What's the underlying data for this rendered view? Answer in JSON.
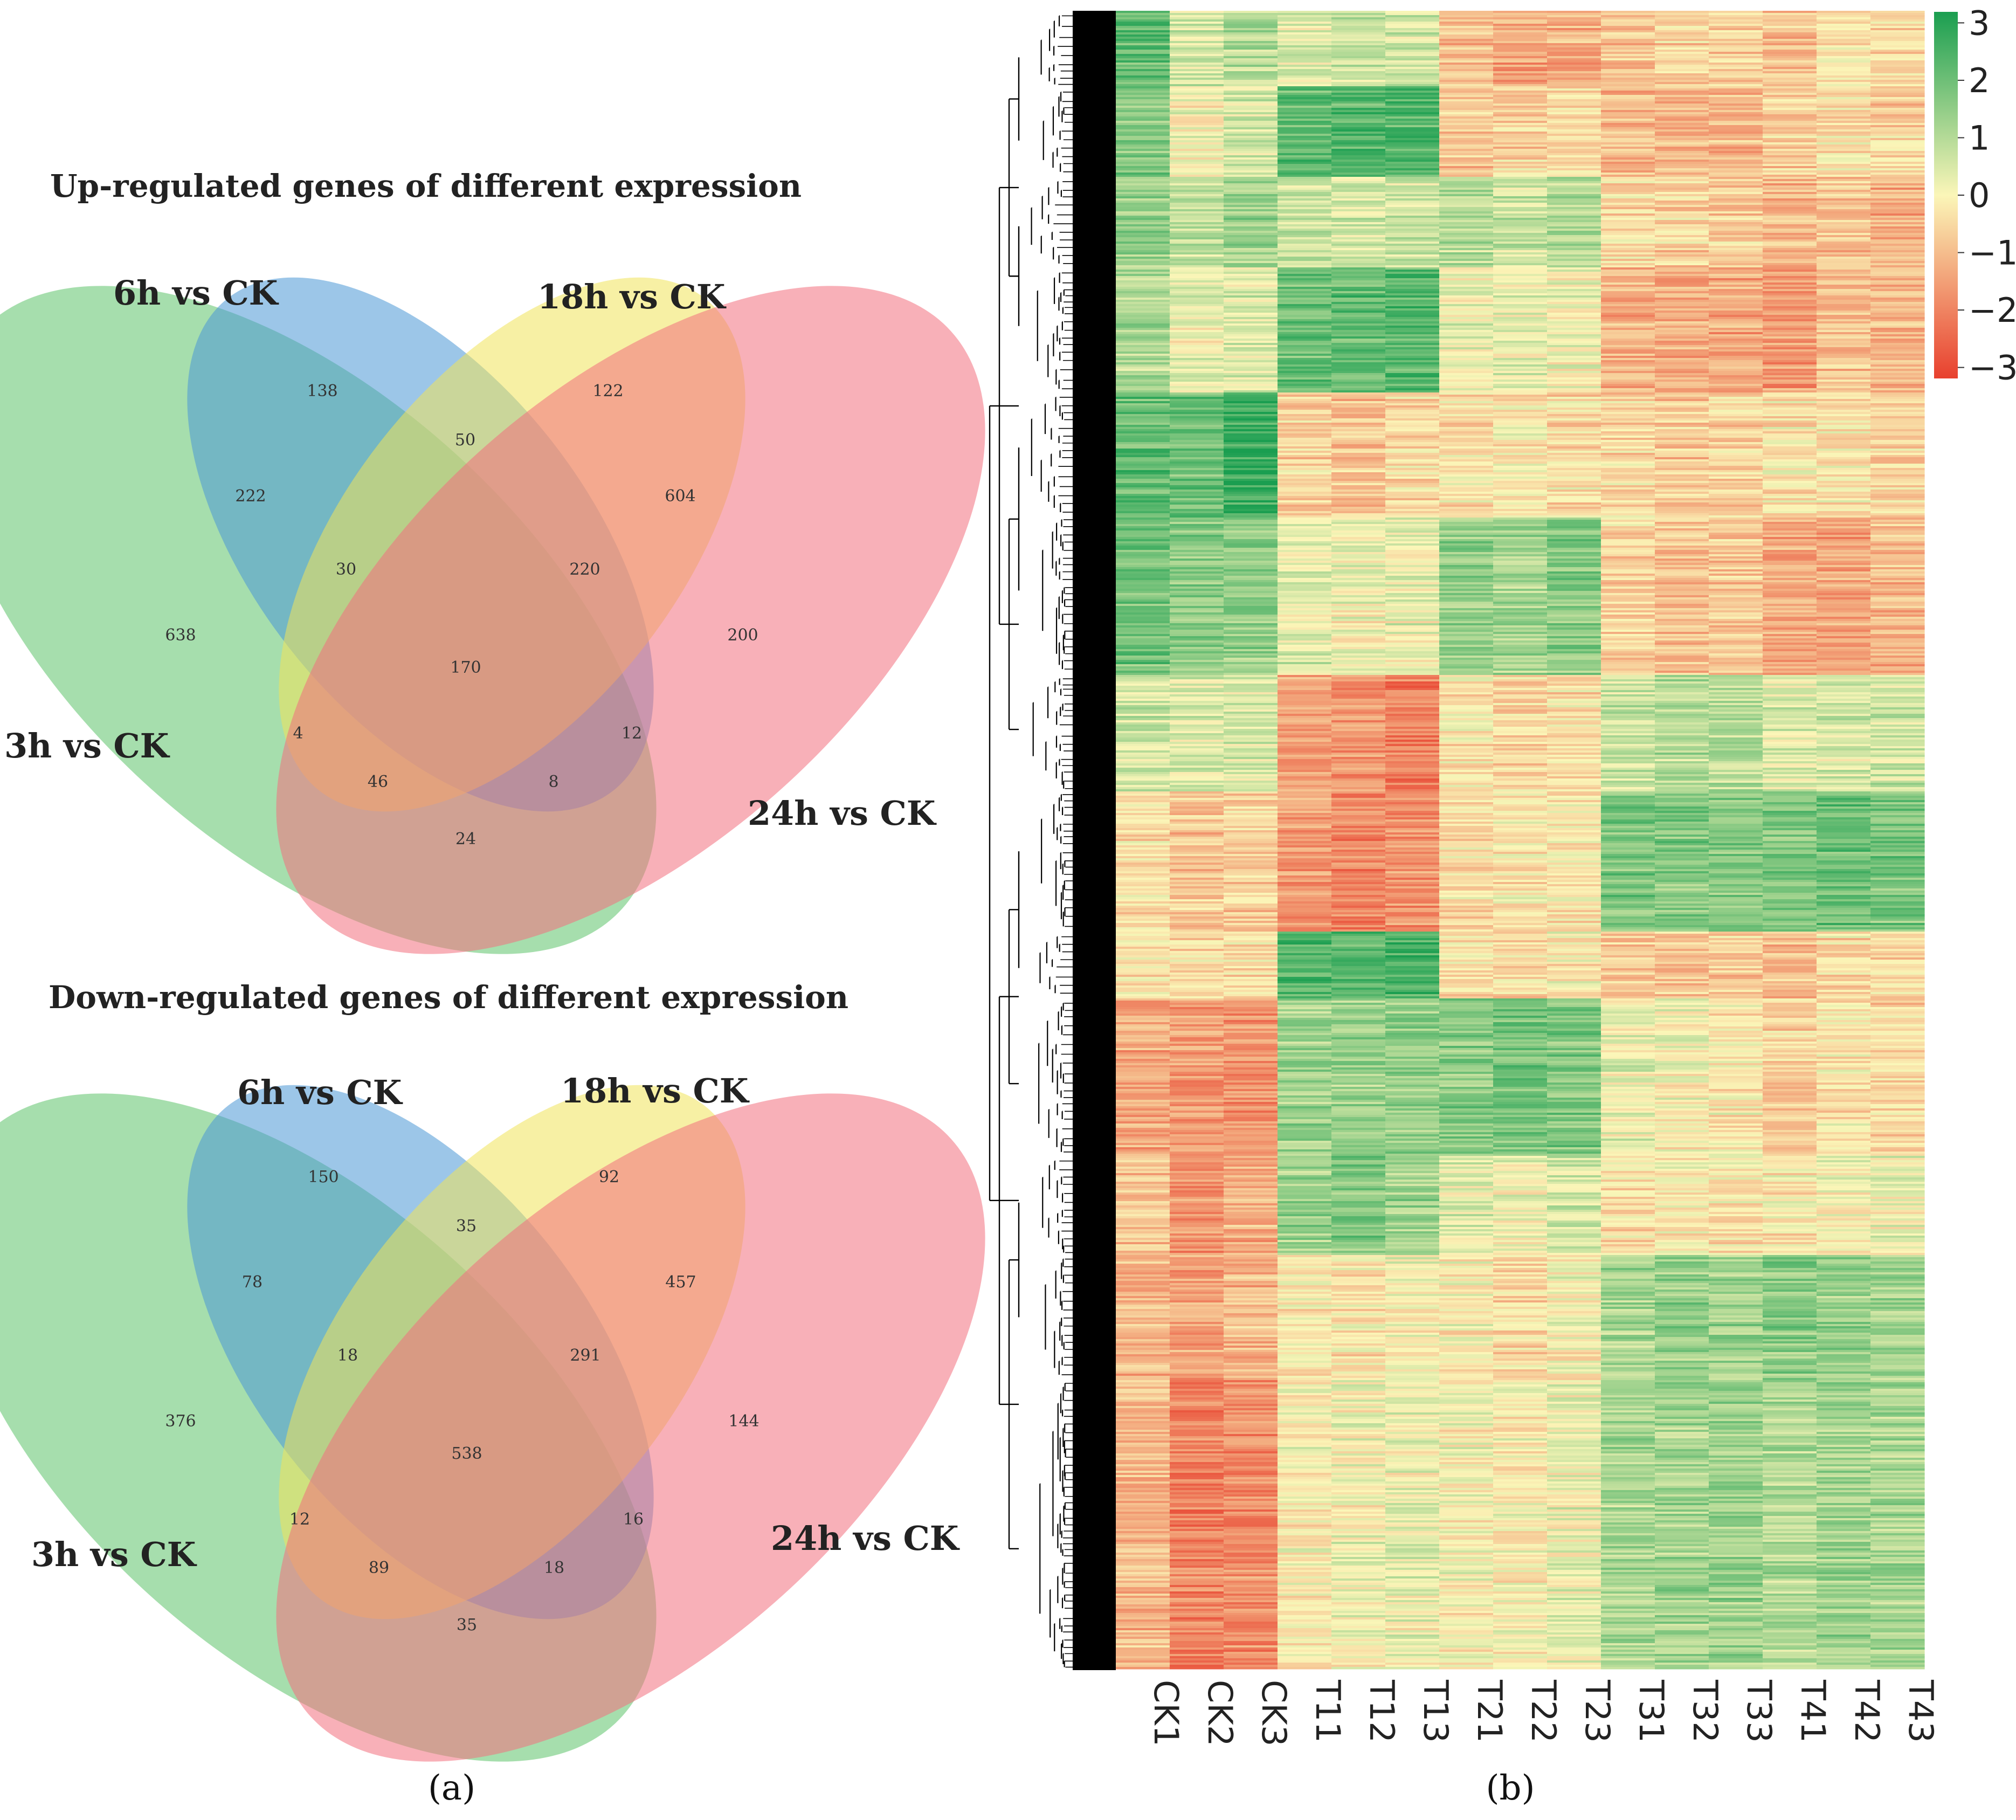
{
  "colors": {
    "set_3h": "#5dc26a",
    "set_6h": "#4a97d6",
    "set_18h": "#f0e45a",
    "set_24h": "#f2707e",
    "heat_low": "#e8402e",
    "heat_mid": "#fbf6b8",
    "heat_high": "#1a9e50"
  },
  "panel_labels": {
    "a": "(a)",
    "b": "(b)"
  },
  "chart_data": [
    {
      "type": "venn",
      "title": "Up-regulated genes of different expression",
      "sets": [
        "3h vs CK",
        "6h vs CK",
        "18h vs CK",
        "24h vs CK"
      ],
      "regions": [
        {
          "sets": [
            "3h vs CK"
          ],
          "value": 638
        },
        {
          "sets": [
            "6h vs CK"
          ],
          "value": 138
        },
        {
          "sets": [
            "18h vs CK"
          ],
          "value": 122
        },
        {
          "sets": [
            "24h vs CK"
          ],
          "value": 200
        },
        {
          "sets": [
            "3h vs CK",
            "6h vs CK"
          ],
          "value": 222
        },
        {
          "sets": [
            "6h vs CK",
            "18h vs CK"
          ],
          "value": 50
        },
        {
          "sets": [
            "18h vs CK",
            "24h vs CK"
          ],
          "value": 604
        },
        {
          "sets": [
            "3h vs CK",
            "6h vs CK",
            "18h vs CK"
          ],
          "value": 30
        },
        {
          "sets": [
            "6h vs CK",
            "18h vs CK",
            "24h vs CK"
          ],
          "value": 220
        },
        {
          "sets": [
            "3h vs CK",
            "6h vs CK",
            "18h vs CK",
            "24h vs CK"
          ],
          "value": 170
        },
        {
          "sets": [
            "3h vs CK",
            "18h vs CK"
          ],
          "value": 4
        },
        {
          "sets": [
            "6h vs CK",
            "24h vs CK"
          ],
          "value": 12
        },
        {
          "sets": [
            "3h vs CK",
            "18h vs CK",
            "24h vs CK"
          ],
          "value": 46
        },
        {
          "sets": [
            "3h vs CK",
            "6h vs CK",
            "24h vs CK"
          ],
          "value": 8
        },
        {
          "sets": [
            "3h vs CK",
            "24h vs CK"
          ],
          "value": 24
        }
      ]
    },
    {
      "type": "venn",
      "title": "Down-regulated genes of different expression",
      "sets": [
        "3h vs CK",
        "6h vs CK",
        "18h vs CK",
        "24h vs CK"
      ],
      "regions": [
        {
          "sets": [
            "3h vs CK"
          ],
          "value": 376
        },
        {
          "sets": [
            "6h vs CK"
          ],
          "value": 150
        },
        {
          "sets": [
            "18h vs CK"
          ],
          "value": 92
        },
        {
          "sets": [
            "24h vs CK"
          ],
          "value": 144
        },
        {
          "sets": [
            "3h vs CK",
            "6h vs CK"
          ],
          "value": 78
        },
        {
          "sets": [
            "6h vs CK",
            "18h vs CK"
          ],
          "value": 35
        },
        {
          "sets": [
            "18h vs CK",
            "24h vs CK"
          ],
          "value": 457
        },
        {
          "sets": [
            "3h vs CK",
            "6h vs CK",
            "18h vs CK"
          ],
          "value": 18
        },
        {
          "sets": [
            "6h vs CK",
            "18h vs CK",
            "24h vs CK"
          ],
          "value": 291
        },
        {
          "sets": [
            "3h vs CK",
            "6h vs CK",
            "18h vs CK",
            "24h vs CK"
          ],
          "value": 538
        },
        {
          "sets": [
            "3h vs CK",
            "18h vs CK"
          ],
          "value": 12
        },
        {
          "sets": [
            "6h vs CK",
            "24h vs CK"
          ],
          "value": 16
        },
        {
          "sets": [
            "3h vs CK",
            "18h vs CK",
            "24h vs CK"
          ],
          "value": 89
        },
        {
          "sets": [
            "3h vs CK",
            "6h vs CK",
            "24h vs CK"
          ],
          "value": 18
        },
        {
          "sets": [
            "3h vs CK",
            "24h vs CK"
          ],
          "value": 35
        }
      ]
    },
    {
      "type": "heatmap",
      "columns": [
        "CK1",
        "CK2",
        "CK3",
        "T11",
        "T12",
        "T13",
        "T21",
        "T22",
        "T23",
        "T31",
        "T32",
        "T33",
        "T41",
        "T42",
        "T43"
      ],
      "row_dendrogram": true,
      "color_scale": {
        "min": -3,
        "max": 3,
        "ticks": [
          "3",
          "2",
          "1",
          "0",
          "−1",
          "−2",
          "−3"
        ],
        "tick_values": [
          3,
          2,
          1,
          0,
          -1,
          -2,
          -3
        ]
      },
      "cluster_blocks": [
        {
          "row_share": 0.045,
          "values": [
            2.0,
            0.4,
            0.9,
            0.3,
            0.6,
            0.5,
            -1.0,
            -1.4,
            -1.2,
            -0.8,
            -0.6,
            -0.7,
            -0.9,
            -0.4,
            -0.5
          ]
        },
        {
          "row_share": 0.055,
          "values": [
            1.6,
            0.0,
            0.5,
            2.0,
            2.2,
            2.1,
            -0.8,
            -0.6,
            -0.5,
            -1.0,
            -1.1,
            -1.0,
            -0.7,
            -0.3,
            -0.6
          ]
        },
        {
          "row_share": 0.055,
          "values": [
            1.3,
            0.8,
            1.2,
            0.7,
            0.5,
            0.6,
            0.9,
            0.6,
            1.0,
            -0.4,
            -0.6,
            -0.7,
            -1.0,
            -0.8,
            -1.2
          ]
        },
        {
          "row_share": 0.075,
          "values": [
            1.0,
            0.2,
            0.4,
            1.9,
            2.0,
            2.2,
            0.2,
            0.3,
            0.1,
            -1.1,
            -1.2,
            -1.3,
            -1.5,
            -0.9,
            -1.0
          ]
        },
        {
          "row_share": 0.075,
          "values": [
            2.0,
            1.9,
            2.6,
            -0.6,
            -0.8,
            -0.5,
            -0.3,
            -0.2,
            -0.4,
            -0.5,
            -0.7,
            -0.6,
            -0.3,
            -0.2,
            -0.6
          ]
        },
        {
          "row_share": 0.095,
          "values": [
            1.8,
            1.5,
            1.4,
            0.4,
            0.1,
            0.2,
            1.3,
            1.2,
            1.5,
            -0.6,
            -0.9,
            -0.8,
            -1.2,
            -1.4,
            -1.0
          ]
        },
        {
          "row_share": 0.07,
          "values": [
            0.6,
            0.4,
            0.5,
            -1.4,
            -1.7,
            -1.9,
            -0.2,
            -0.6,
            -0.4,
            0.7,
            0.9,
            0.8,
            0.4,
            0.5,
            0.6
          ]
        },
        {
          "row_share": 0.085,
          "values": [
            -0.4,
            -0.8,
            -0.6,
            -1.5,
            -1.8,
            -1.6,
            -0.4,
            -0.2,
            -0.3,
            1.7,
            1.6,
            1.5,
            1.6,
            1.9,
            1.7
          ]
        },
        {
          "row_share": 0.04,
          "values": [
            -0.2,
            -0.4,
            -0.3,
            2.3,
            2.2,
            2.4,
            -0.3,
            -0.5,
            -0.2,
            -0.6,
            -0.8,
            -0.7,
            -0.9,
            -0.4,
            -0.5
          ]
        },
        {
          "row_share": 0.095,
          "values": [
            -1.2,
            -1.5,
            -1.6,
            1.2,
            1.3,
            1.4,
            1.5,
            1.8,
            1.6,
            0.2,
            0.0,
            -0.2,
            -0.6,
            -0.3,
            -0.5
          ]
        },
        {
          "row_share": 0.06,
          "values": [
            -0.8,
            -1.6,
            -1.2,
            1.3,
            1.6,
            1.2,
            0.3,
            0.1,
            0.5,
            -0.4,
            -0.1,
            -0.3,
            -0.2,
            0.0,
            0.1
          ]
        },
        {
          "row_share": 0.075,
          "values": [
            -1.1,
            -1.4,
            -1.0,
            -0.2,
            -0.3,
            0.0,
            -0.1,
            -0.4,
            0.0,
            1.1,
            1.3,
            1.2,
            1.5,
            1.3,
            1.2
          ]
        },
        {
          "row_share": 0.175,
          "values": [
            -1.0,
            -1.9,
            -1.7,
            -0.1,
            0.1,
            0.2,
            0.0,
            -0.1,
            0.2,
            1.1,
            1.2,
            1.3,
            1.0,
            1.2,
            1.1
          ]
        }
      ]
    }
  ]
}
